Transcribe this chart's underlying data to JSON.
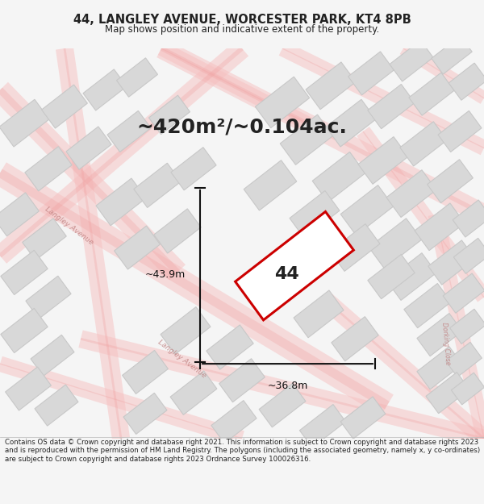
{
  "title_line1": "44, LANGLEY AVENUE, WORCESTER PARK, KT4 8PB",
  "title_line2": "Map shows position and indicative extent of the property.",
  "area_text": "~420m²/~0.104ac.",
  "label_number": "44",
  "dim_width": "~36.8m",
  "dim_height": "~43.9m",
  "footer": "Contains OS data © Crown copyright and database right 2021. This information is subject to Crown copyright and database rights 2023 and is reproduced with the permission of HM Land Registry. The polygons (including the associated geometry, namely x, y co-ordinates) are subject to Crown copyright and database rights 2023 Ordnance Survey 100026316.",
  "bg_color": "#f5f5f5",
  "map_bg": "#ffffff",
  "road_color": "#f5c0c0",
  "building_color": "#d8d8d8",
  "building_edge": "#c8c8c8",
  "highlight_color": "#cc0000",
  "text_color": "#222222",
  "road_label_color": "#c08080",
  "dim_color": "#111111"
}
